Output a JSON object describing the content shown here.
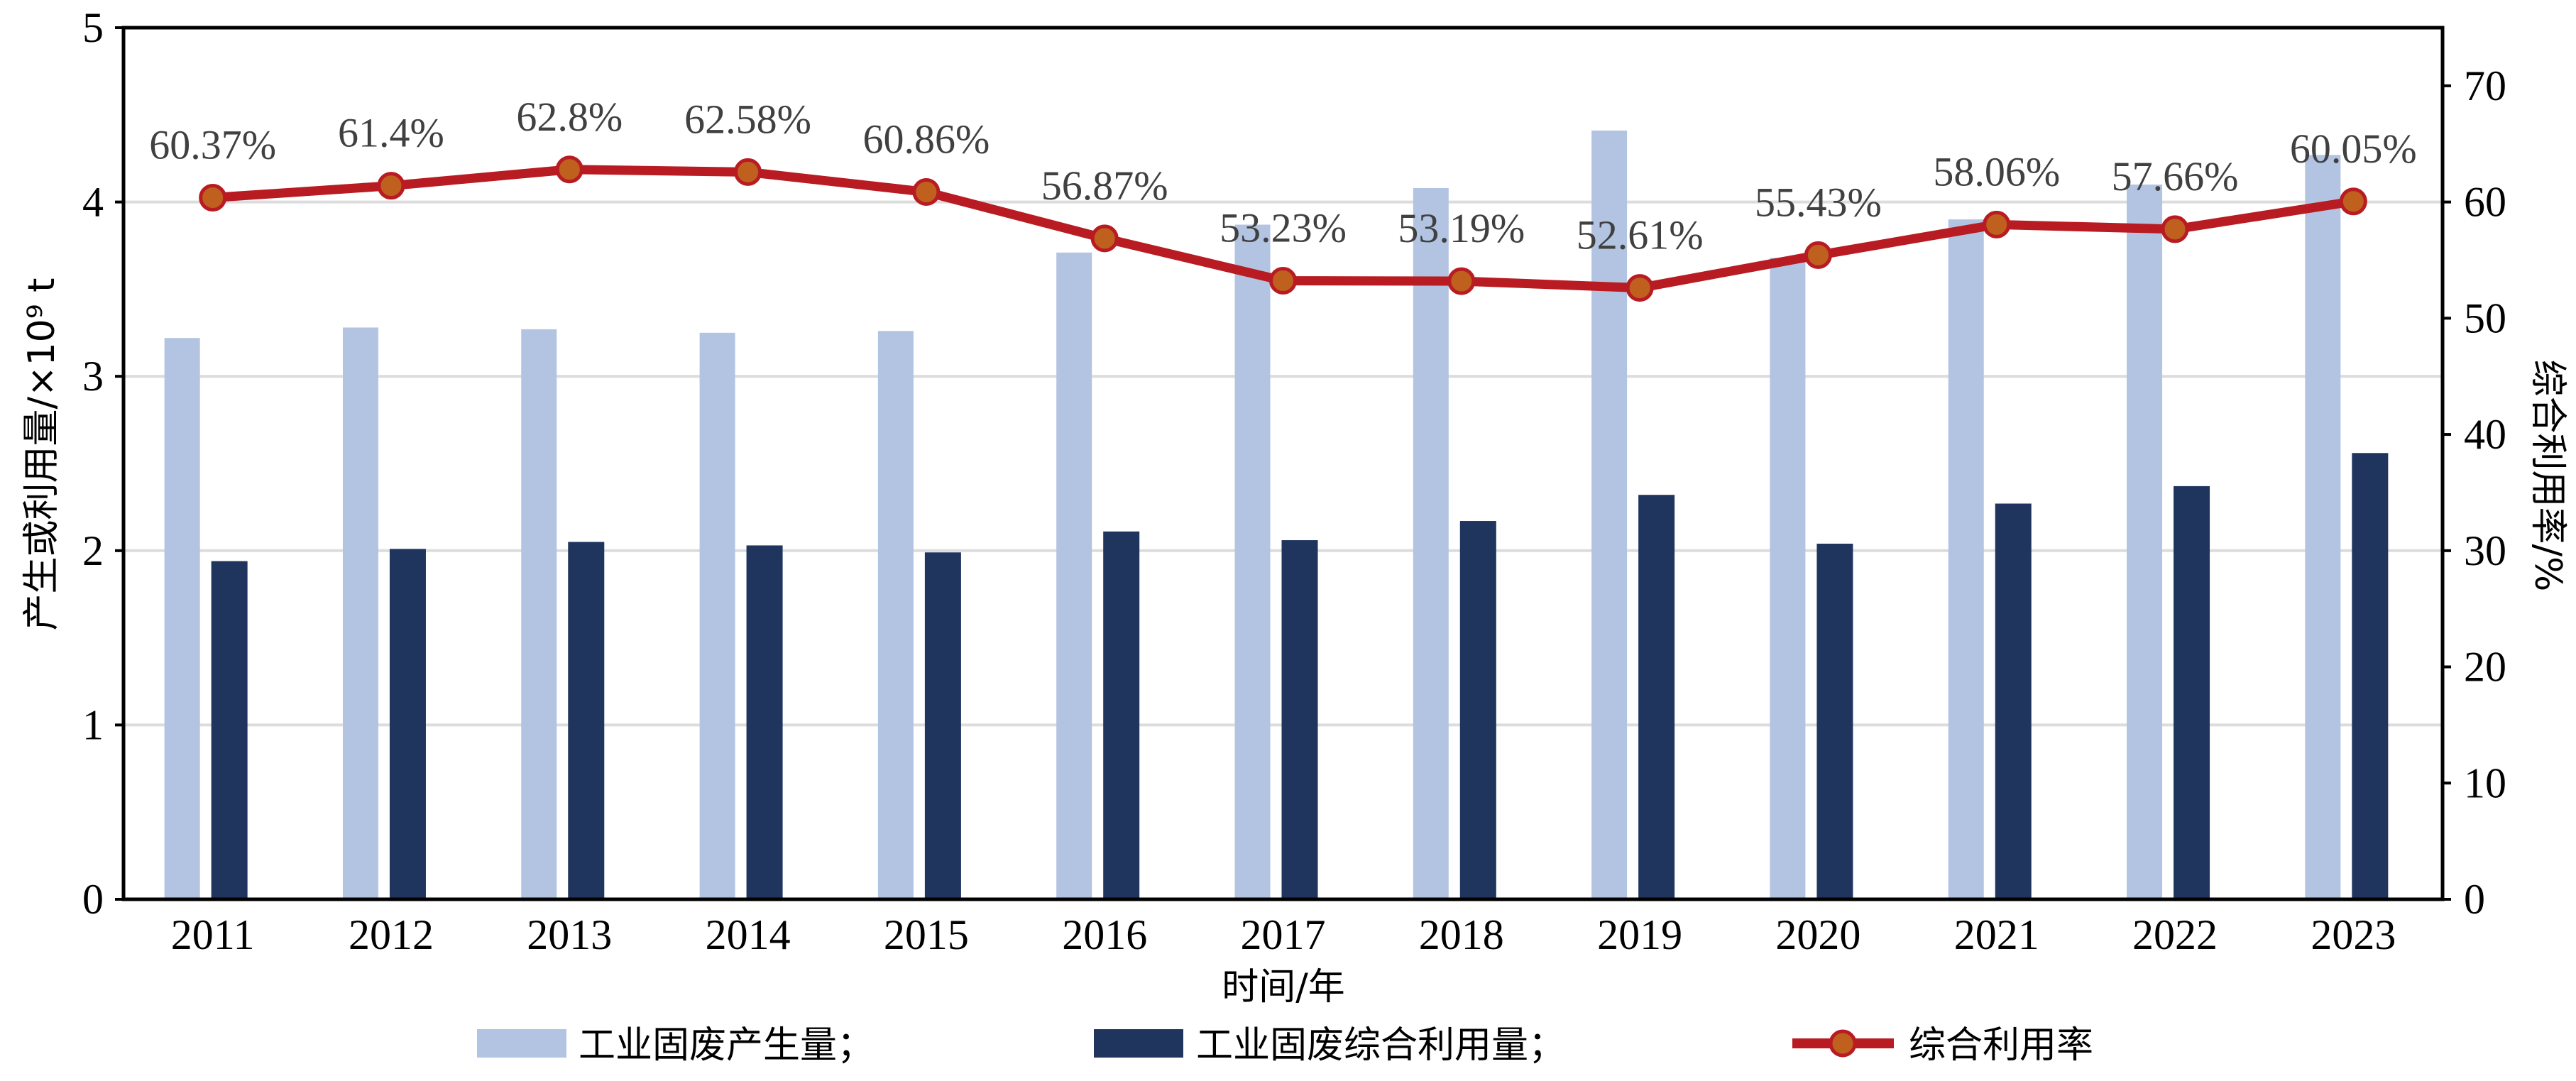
{
  "chart_data": {
    "type": "bar",
    "categories": [
      "2011",
      "2012",
      "2013",
      "2014",
      "2015",
      "2016",
      "2017",
      "2018",
      "2019",
      "2020",
      "2021",
      "2022",
      "2023"
    ],
    "series": [
      {
        "name": "工业固废产生量；",
        "type": "bar",
        "axis": "left",
        "color": "#b2c4e2",
        "values": [
          3.22,
          3.28,
          3.27,
          3.25,
          3.26,
          3.71,
          3.87,
          4.08,
          4.41,
          3.68,
          3.9,
          4.1,
          4.27
        ]
      },
      {
        "name": "工业固废综合利用量；",
        "type": "bar",
        "axis": "left",
        "color": "#1f355e",
        "values": [
          1.94,
          2.01,
          2.05,
          2.03,
          1.99,
          2.11,
          2.06,
          2.17,
          2.32,
          2.04,
          2.27,
          2.37,
          2.56
        ]
      },
      {
        "name": "综合利用率",
        "type": "line",
        "axis": "right",
        "color": "#b81c22",
        "marker_color": "#c0601f",
        "values": [
          60.37,
          61.4,
          62.8,
          62.58,
          60.86,
          56.87,
          53.23,
          53.19,
          52.61,
          55.43,
          58.06,
          57.66,
          60.05
        ],
        "labels": [
          "60.37%",
          "61.4%",
          "62.8%",
          "62.58%",
          "60.86%",
          "56.87%",
          "53.23%",
          "53.19%",
          "52.61%",
          "55.43%",
          "58.06%",
          "57.66%",
          "60.05%"
        ]
      }
    ],
    "xlabel": "时间/年",
    "ylabel": "产生或利用量/×10⁹ t",
    "ylabel_right": "综合利用率/%",
    "ylim": [
      0,
      5
    ],
    "ylim_right": [
      0,
      75
    ],
    "yticks": [
      "0",
      "1",
      "2",
      "3",
      "4",
      "5"
    ],
    "yticks_right": [
      "0",
      "10",
      "20",
      "30",
      "40",
      "50",
      "60",
      "70"
    ],
    "grid": true,
    "legend_position": "bottom"
  }
}
